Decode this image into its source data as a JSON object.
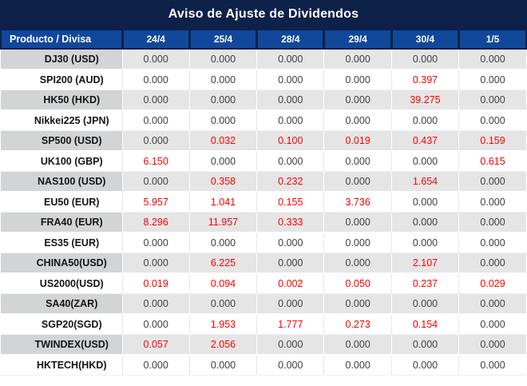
{
  "page": {
    "title": "Aviso de Ajuste de Dividendos"
  },
  "colors": {
    "title_bar_bg": "#0d2149",
    "header_bg": "#11489b",
    "header_text": "#ffffff",
    "shaded_row_label_bg": "#d3d4d6",
    "shaded_row_value_bg": "#e5e5e6",
    "zero_value_text": "#3f3f3f",
    "nonzero_value_text": "#fb0000"
  },
  "chart_data": {
    "type": "table",
    "title": "Aviso de Ajuste de Dividendos",
    "columns": [
      "Producto / Divisa",
      "24/4",
      "25/4",
      "28/4",
      "29/4",
      "30/4",
      "1/5"
    ],
    "value_format": "3-decimals",
    "highlight_rule": "values greater than 0 are shown in red",
    "rows": [
      {
        "product": "DJ30 (USD)",
        "values": [
          0.0,
          0.0,
          0.0,
          0.0,
          0.0,
          0.0
        ]
      },
      {
        "product": "SPI200 (AUD)",
        "values": [
          0.0,
          0.0,
          0.0,
          0.0,
          0.397,
          0.0
        ]
      },
      {
        "product": "HK50 (HKD)",
        "values": [
          0.0,
          0.0,
          0.0,
          0.0,
          39.275,
          0.0
        ]
      },
      {
        "product": "Nikkei225 (JPN)",
        "values": [
          0.0,
          0.0,
          0.0,
          0.0,
          0.0,
          0.0
        ]
      },
      {
        "product": "SP500 (USD)",
        "values": [
          0.0,
          0.032,
          0.1,
          0.019,
          0.437,
          0.159
        ]
      },
      {
        "product": "UK100 (GBP)",
        "values": [
          6.15,
          0.0,
          0.0,
          0.0,
          0.0,
          0.615
        ]
      },
      {
        "product": "NAS100 (USD)",
        "values": [
          0.0,
          0.358,
          0.232,
          0.0,
          1.654,
          0.0
        ]
      },
      {
        "product": "EU50 (EUR)",
        "values": [
          5.957,
          1.041,
          0.155,
          3.736,
          0.0,
          0.0
        ]
      },
      {
        "product": "FRA40 (EUR)",
        "values": [
          8.296,
          11.957,
          0.333,
          0.0,
          0.0,
          0.0
        ]
      },
      {
        "product": "ES35 (EUR)",
        "values": [
          0.0,
          0.0,
          0.0,
          0.0,
          0.0,
          0.0
        ]
      },
      {
        "product": "CHINA50(USD)",
        "values": [
          0.0,
          6.225,
          0.0,
          0.0,
          2.107,
          0.0
        ]
      },
      {
        "product": "US2000(USD)",
        "values": [
          0.019,
          0.094,
          0.002,
          0.05,
          0.237,
          0.029
        ]
      },
      {
        "product": "SA40(ZAR)",
        "values": [
          0.0,
          0.0,
          0.0,
          0.0,
          0.0,
          0.0
        ]
      },
      {
        "product": "SGP20(SGD)",
        "values": [
          0.0,
          1.953,
          1.777,
          0.273,
          0.154,
          0.0
        ]
      },
      {
        "product": "TWINDEX(USD)",
        "values": [
          0.057,
          2.056,
          0.0,
          0.0,
          0.0,
          0.0
        ]
      },
      {
        "product": "HKTECH(HKD)",
        "values": [
          0.0,
          0.0,
          0.0,
          0.0,
          0.0,
          0.0
        ]
      }
    ]
  }
}
